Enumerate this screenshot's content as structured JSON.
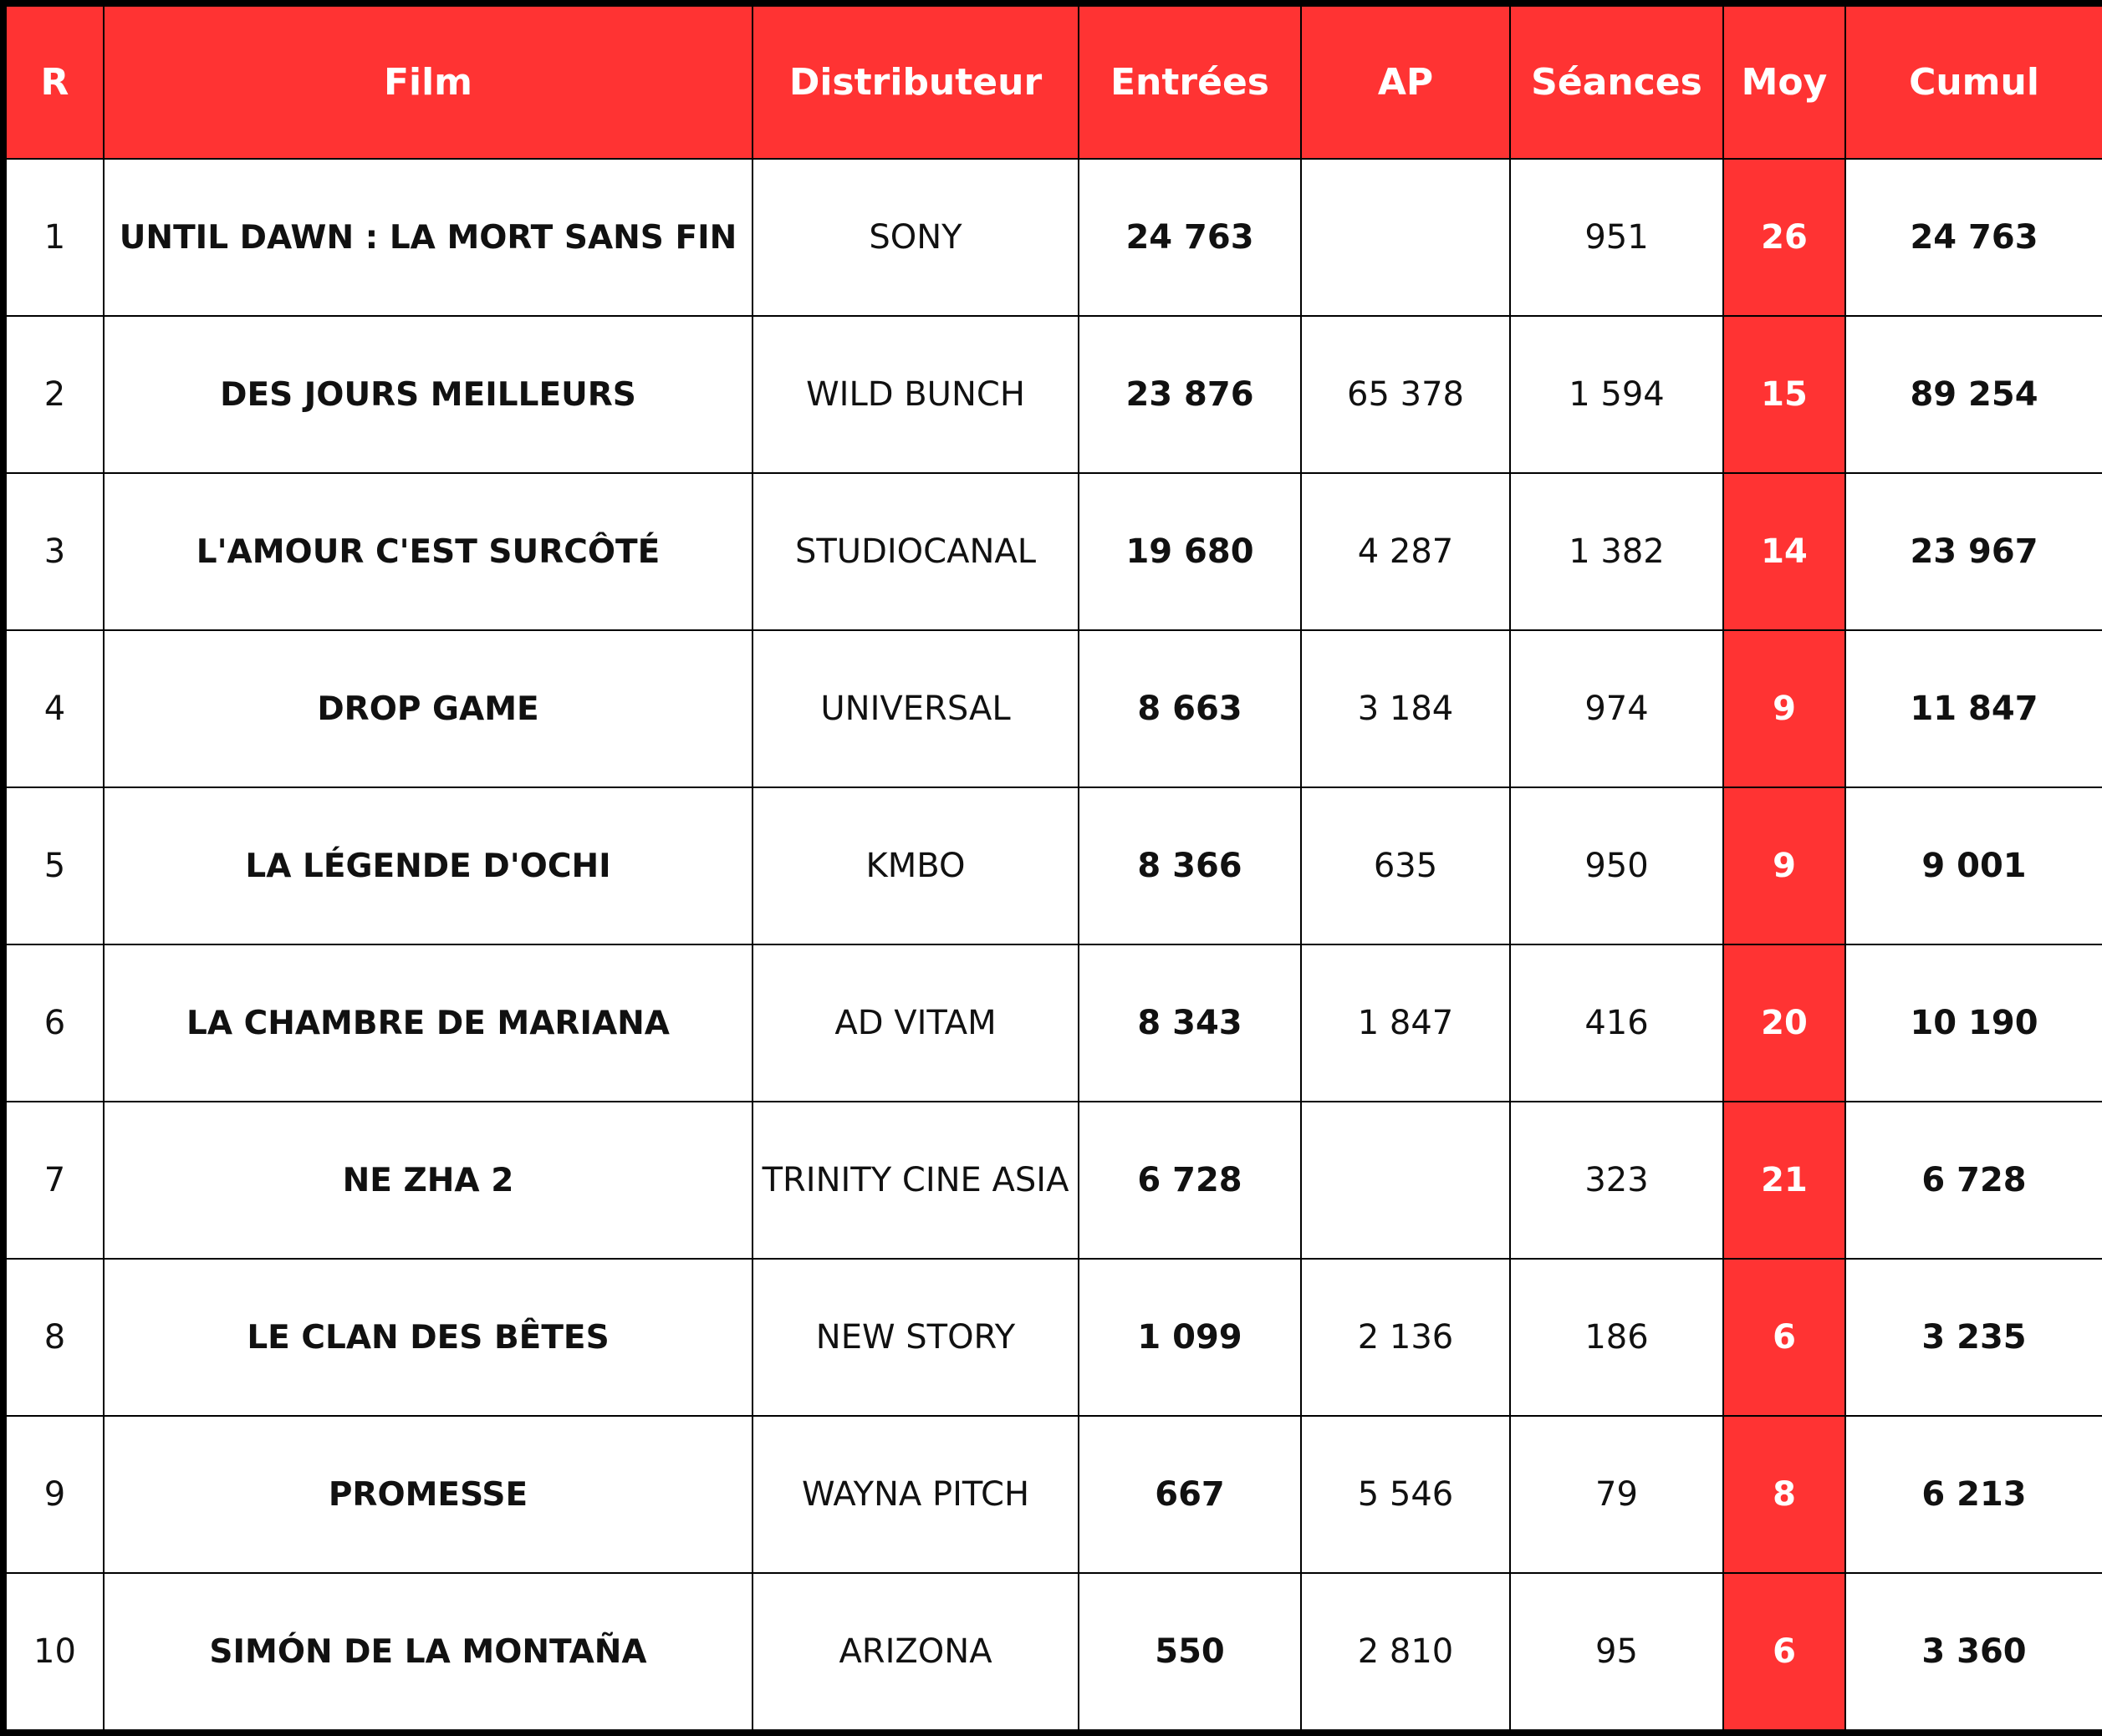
{
  "table": {
    "headers": [
      "R",
      "Film",
      "Distributeur",
      "Entrées",
      "AP",
      "Séances",
      "Moy",
      "Cumul"
    ],
    "rows": [
      [
        "1",
        "UNTIL DAWN : LA MORT SANS FIN",
        "SONY",
        "24 763",
        null,
        "951",
        "26",
        "24 763"
      ],
      [
        "2",
        "DES JOURS MEILLEURS",
        "WILD BUNCH",
        "23 876",
        "65 378",
        "1 594",
        "15",
        "89 254"
      ],
      [
        "3",
        "L'AMOUR C'EST SURCÔTÉ",
        "STUDIOCANAL",
        "19 680",
        "4 287",
        "1 382",
        "14",
        "23 967"
      ],
      [
        "4",
        "DROP GAME",
        "UNIVERSAL",
        "8 663",
        "3 184",
        "974",
        "9",
        "11 847"
      ],
      [
        "5",
        "LA LÉGENDE D'OCHI",
        "KMBO",
        "8 366",
        "635",
        "950",
        "9",
        "9 001"
      ],
      [
        "6",
        "LA CHAMBRE DE MARIANA",
        "AD VITAM",
        "8 343",
        "1 847",
        "416",
        "20",
        "10 190"
      ],
      [
        "7",
        "NE ZHA 2",
        "TRINITY CINE ASIA",
        "6 728",
        null,
        "323",
        "21",
        "6 728"
      ],
      [
        "8",
        "LE CLAN DES BÊTES",
        "NEW STORY",
        "1 099",
        "2 136",
        "186",
        "6",
        "3 235"
      ],
      [
        "9",
        "PROMESSE",
        "WAYNA PITCH",
        "667",
        "5 546",
        "79",
        "8",
        "6 213"
      ],
      [
        "10",
        "SIMÓN DE LA MONTAÑA",
        "ARIZONA",
        "550",
        "2 810",
        "95",
        "6",
        "3 360"
      ]
    ]
  }
}
